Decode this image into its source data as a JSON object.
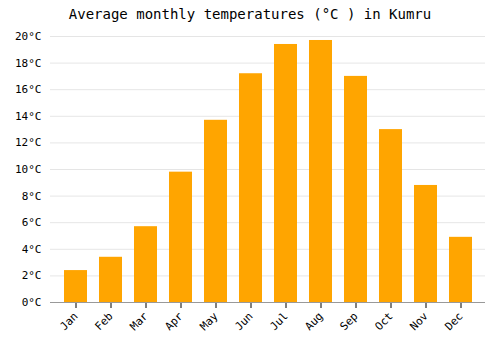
{
  "chart_data": {
    "type": "bar",
    "title": "Average monthly temperatures (°C ) in Kumru",
    "categories": [
      "Jan",
      "Feb",
      "Mar",
      "Apr",
      "May",
      "Jun",
      "Jul",
      "Aug",
      "Sep",
      "Oct",
      "Nov",
      "Dec"
    ],
    "values": [
      2.4,
      3.4,
      5.7,
      9.8,
      13.7,
      17.2,
      19.4,
      19.7,
      17.0,
      13.0,
      8.8,
      4.9
    ],
    "color": "#FFA500",
    "ylim": [
      0,
      20
    ],
    "yticks": [
      {
        "value": 0,
        "label": "0°C"
      },
      {
        "value": 2,
        "label": "2°C"
      },
      {
        "value": 4,
        "label": "4°C"
      },
      {
        "value": 6,
        "label": "6°C"
      },
      {
        "value": 8,
        "label": "8°C"
      },
      {
        "value": 10,
        "label": "10°C"
      },
      {
        "value": 12,
        "label": "12°C"
      },
      {
        "value": 14,
        "label": "14°C"
      },
      {
        "value": 16,
        "label": "16°C"
      },
      {
        "value": 18,
        "label": "18°C"
      },
      {
        "value": 20,
        "label": "20°C"
      }
    ],
    "grid": true
  }
}
